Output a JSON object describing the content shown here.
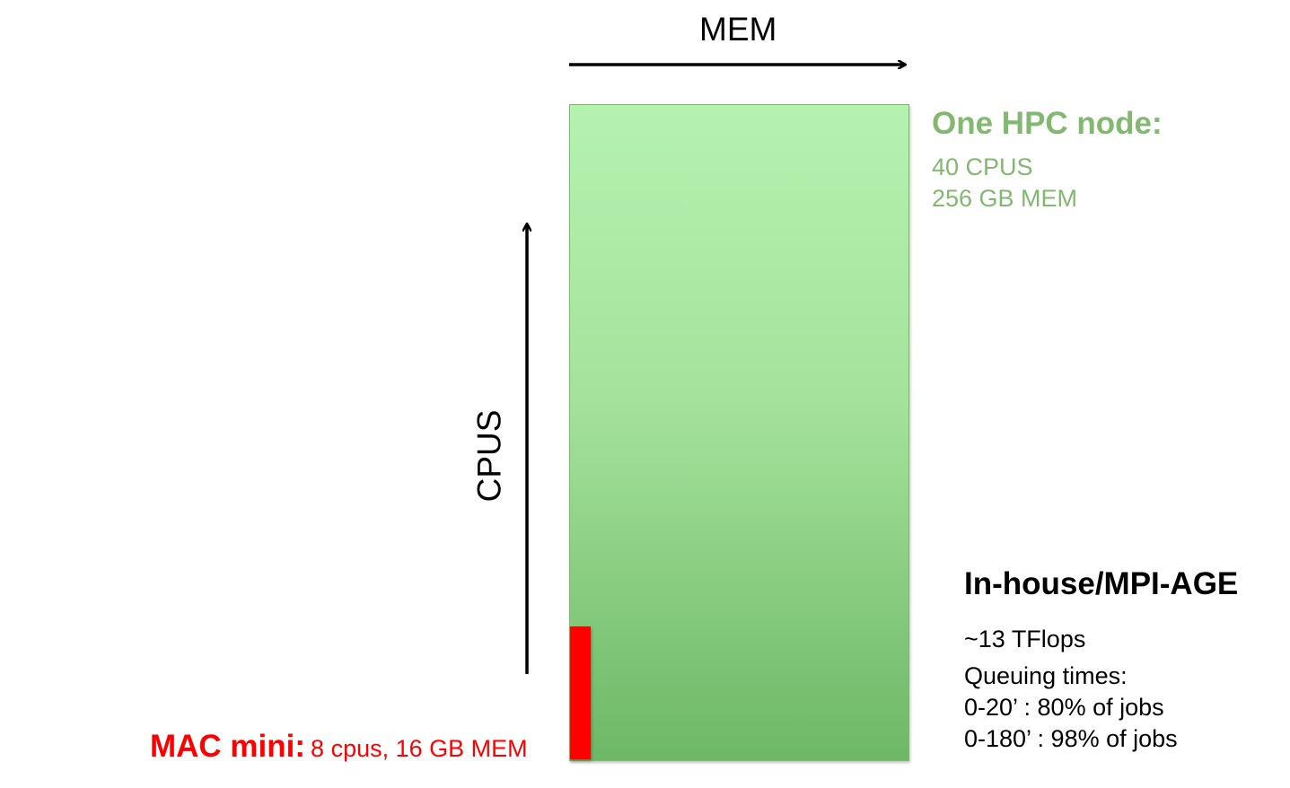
{
  "axes": {
    "mem_label": "MEM",
    "cpus_label": "CPUS"
  },
  "hpc_node": {
    "title": "One HPC node:",
    "cpus": "40 CPUS",
    "mem": "256 GB MEM",
    "color": "#82b86f",
    "fill_top": "#b5f2b0",
    "fill_bottom": "#6db866"
  },
  "in_house": {
    "title": "In-house/MPI-AGE",
    "tflops": "~13 TFlops",
    "queuing_title": "Queuing times:",
    "queuing_1": "0-20’ : 80% of jobs",
    "queuing_2": "0-180’ : 98% of jobs"
  },
  "mac_mini": {
    "name": "MAC mini:",
    "specs": "8 cpus, 16 GB MEM",
    "color": "#ff0000"
  }
}
